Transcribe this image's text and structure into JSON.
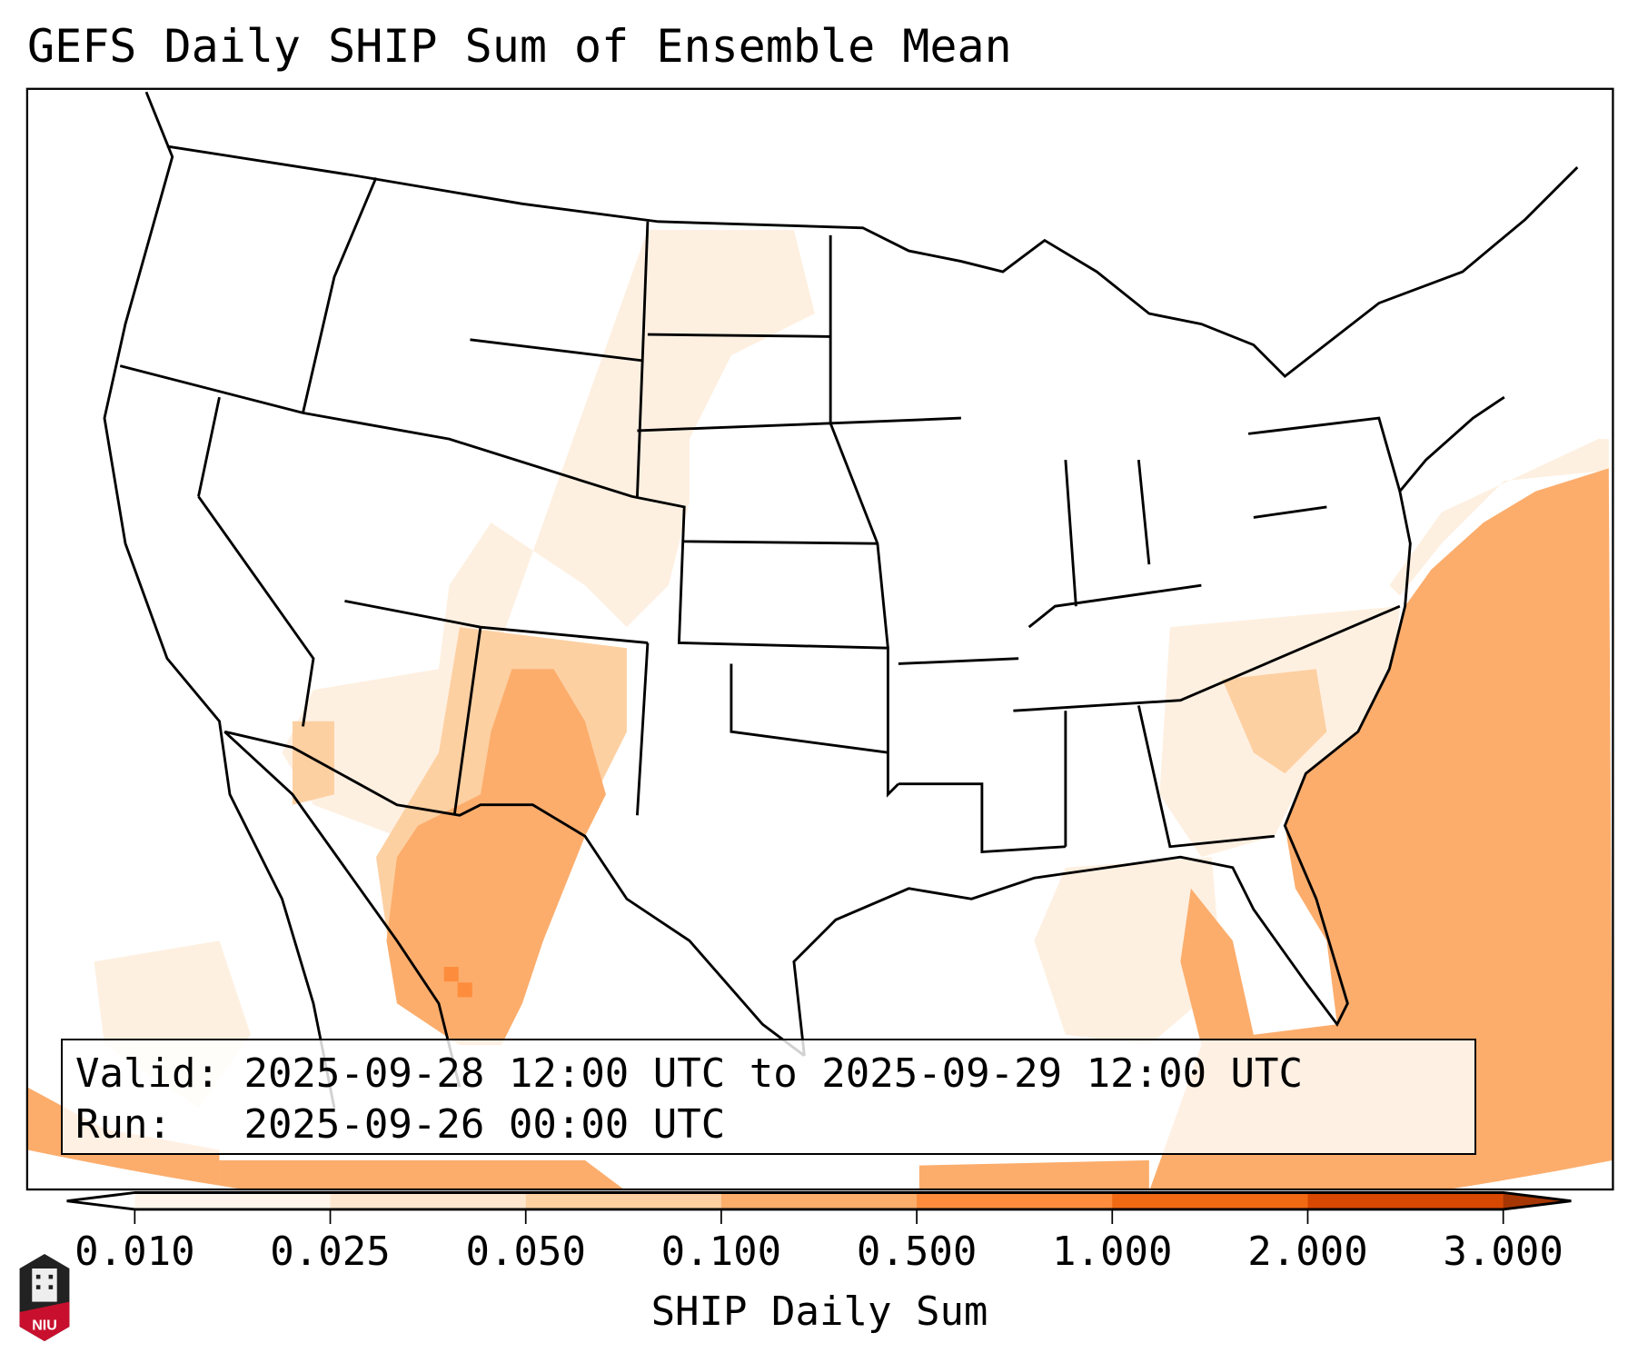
{
  "title": "GEFS Daily SHIP Sum of Ensemble Mean",
  "info": {
    "valid_label": "Valid:",
    "valid_value": "2025-09-28 12:00 UTC to 2025-09-29 12:00 UTC",
    "run_label": "Run:",
    "run_value": "2025-09-26 00:00 UTC"
  },
  "colorbar": {
    "label": "SHIP Daily Sum",
    "ticks": [
      "0.010",
      "0.025",
      "0.050",
      "0.100",
      "0.500",
      "1.000",
      "2.000",
      "3.000"
    ],
    "colors": [
      "#fff5eb",
      "#fee6ce",
      "#fdd0a2",
      "#fdae6b",
      "#fd8d3c",
      "#f16913",
      "#d94801"
    ],
    "under_color": "#ffffff",
    "over_color": "#a63603"
  },
  "logo": {
    "text": "NIU"
  }
}
